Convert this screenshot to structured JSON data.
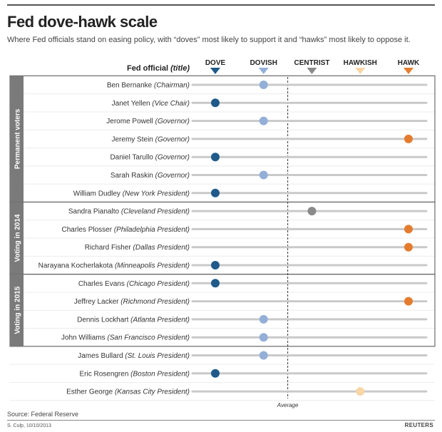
{
  "header": {
    "title": "Fed dove-hawk scale",
    "subtitle": "Where Fed officials stand on easing policy, with “doves” most likely to support it and “hawks” most likely to oppose it."
  },
  "footer": {
    "source": "Source: Federal Reserve",
    "credit": "S. Culp, 10/10/2013",
    "brand": "REUTERS"
  },
  "colors": {
    "dove": "#1f5a8a",
    "dovish": "#93afd8",
    "centrist": "#8a8a8a",
    "hawkish": "#fad5a6",
    "hawk": "#e57c2d",
    "track": "#c9c9c9",
    "group_bar": "#7a7a7a"
  },
  "chart_data": {
    "type": "scatter",
    "title": "Fed dove-hawk scale",
    "column_header": "Fed official",
    "column_header_note": "(title)",
    "scale": [
      "DOVE",
      "DOVISH",
      "CENTRIST",
      "HAWKISH",
      "HAWK"
    ],
    "average_label": "Average",
    "average_position": 2.5,
    "groups": [
      {
        "label": "Permanent voters",
        "first": 0,
        "last": 6
      },
      {
        "label": "Voting in 2014",
        "first": 7,
        "last": 10
      },
      {
        "label": "Voting in 2015",
        "first": 11,
        "last": 14
      }
    ],
    "officials": [
      {
        "name": "Ben Bernanke",
        "title": "(Chairman)",
        "position": 2,
        "category": "dovish"
      },
      {
        "name": "Janet Yellen",
        "title": "(Vice Chair)",
        "position": 1,
        "category": "dove"
      },
      {
        "name": "Jerome Powell",
        "title": "(Governor)",
        "position": 2,
        "category": "dovish"
      },
      {
        "name": "Jeremy Stein",
        "title": "(Governor)",
        "position": 5,
        "category": "hawk"
      },
      {
        "name": "Daniel Tarullo",
        "title": "(Governor)",
        "position": 1,
        "category": "dove"
      },
      {
        "name": "Sarah Raskin",
        "title": "(Governor)",
        "position": 2,
        "category": "dovish"
      },
      {
        "name": "William Dudley",
        "title": "(New York President)",
        "position": 1,
        "category": "dove"
      },
      {
        "name": "Sandra Pianalto",
        "title": "(Cleveland President)",
        "position": 3,
        "category": "centrist"
      },
      {
        "name": "Charles Plosser",
        "title": "(Philadelphia President)",
        "position": 5,
        "category": "hawk"
      },
      {
        "name": "Richard Fisher",
        "title": "(Dallas President)",
        "position": 5,
        "category": "hawk"
      },
      {
        "name": "Narayana Kocherlakota",
        "title": "(Minneapolis President)",
        "position": 1,
        "category": "dove"
      },
      {
        "name": "Charles Evans",
        "title": "(Chicago President)",
        "position": 1,
        "category": "dove"
      },
      {
        "name": "Jeffrey Lacker",
        "title": "(Richmond President)",
        "position": 5,
        "category": "hawk"
      },
      {
        "name": "Dennis Lockhart",
        "title": "(Atlanta President)",
        "position": 2,
        "category": "dovish"
      },
      {
        "name": "John Williams",
        "title": "(San Francisco President)",
        "position": 2,
        "category": "dovish"
      },
      {
        "name": "James Bullard",
        "title": "(St. Louis President)",
        "position": 2,
        "category": "dovish"
      },
      {
        "name": "Eric Rosengren",
        "title": "(Boston President)",
        "position": 1,
        "category": "dove"
      },
      {
        "name": "Esther George",
        "title": "(Kansas City President)",
        "position": 4,
        "category": "hawkish"
      }
    ]
  }
}
